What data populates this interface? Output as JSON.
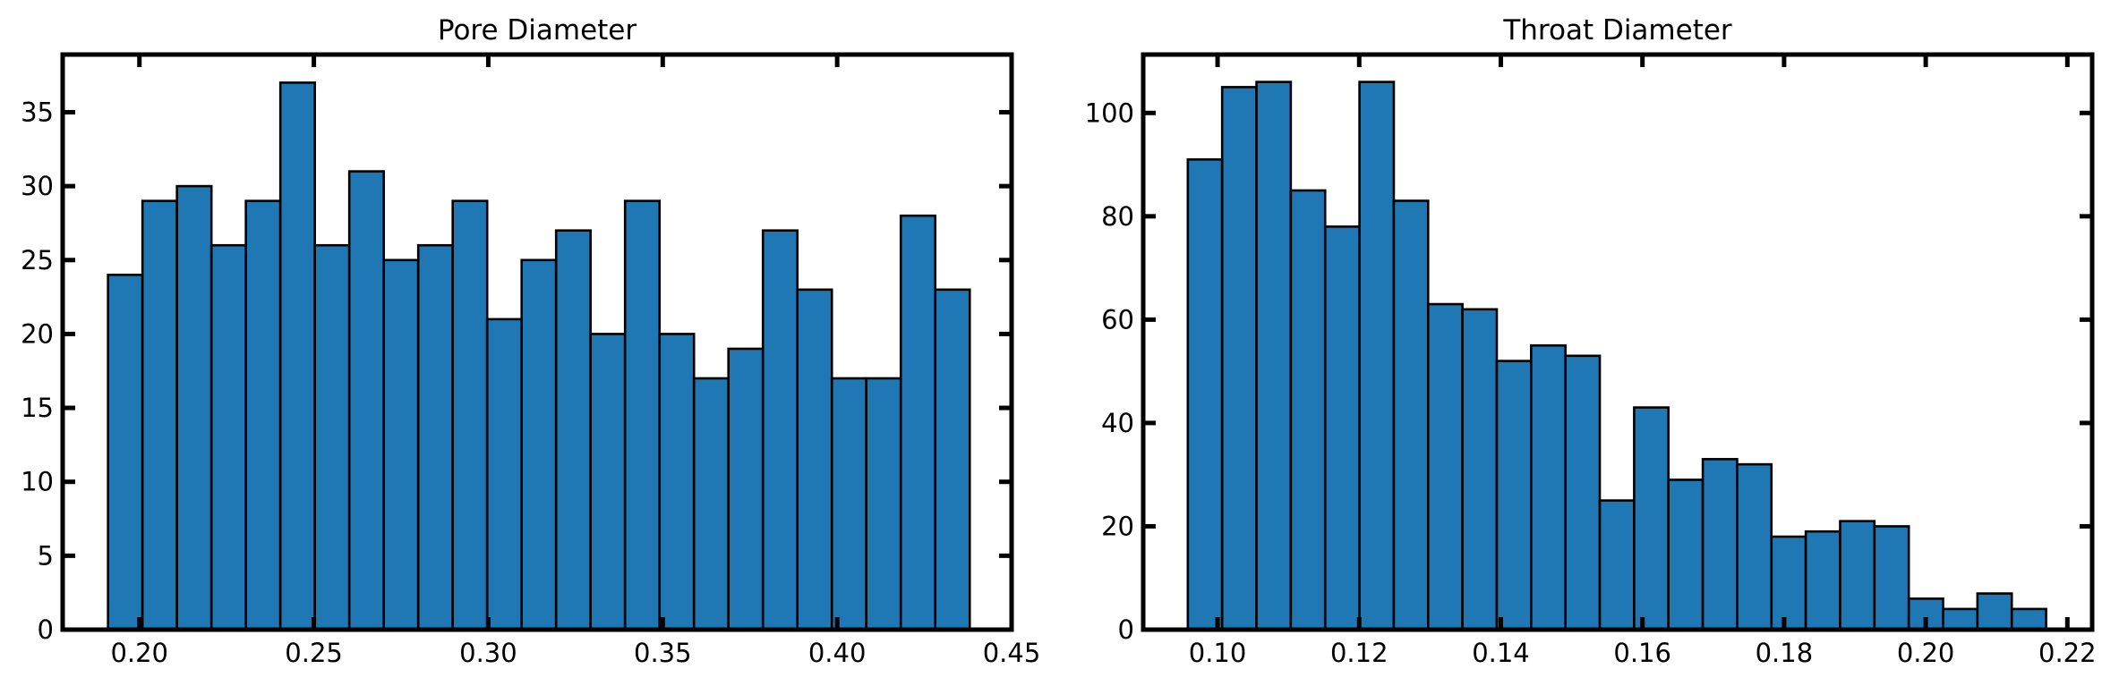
{
  "chart_data": [
    {
      "type": "bar",
      "title": "Pore Diameter",
      "xlabel": "",
      "ylabel": "",
      "xlim": [
        0.178,
        0.45
      ],
      "ylim": [
        0,
        38.9
      ],
      "grid": false,
      "color": "#1f77b4",
      "bin_start": 0.191,
      "bin_width": 0.00988,
      "values": [
        24,
        29,
        30,
        26,
        29,
        37,
        26,
        31,
        25,
        26,
        29,
        21,
        25,
        27,
        20,
        29,
        20,
        17,
        19,
        27,
        23,
        17,
        17,
        28,
        23
      ],
      "xticks": [
        0.2,
        0.25,
        0.3,
        0.35,
        0.4,
        0.45
      ],
      "xtick_labels": [
        "0.20",
        "0.25",
        "0.30",
        "0.35",
        "0.40",
        "0.45"
      ],
      "yticks": [
        0,
        5,
        10,
        15,
        20,
        25,
        30,
        35
      ],
      "ytick_labels": [
        "0",
        "5",
        "10",
        "15",
        "20",
        "25",
        "30",
        "35"
      ]
    },
    {
      "type": "bar",
      "title": "Throat Diameter",
      "xlabel": "",
      "ylabel": "",
      "xlim": [
        0.0895,
        0.2235
      ],
      "ylim": [
        0,
        111.3
      ],
      "grid": false,
      "color": "#1f77b4",
      "bin_start": 0.0958,
      "bin_width": 0.004848,
      "values": [
        91,
        105,
        106,
        85,
        78,
        106,
        83,
        63,
        62,
        52,
        55,
        53,
        25,
        43,
        29,
        33,
        32,
        18,
        19,
        21,
        20,
        6,
        4,
        7,
        4
      ],
      "xticks": [
        0.1,
        0.12,
        0.14,
        0.16,
        0.18,
        0.2,
        0.22
      ],
      "xtick_labels": [
        "0.10",
        "0.12",
        "0.14",
        "0.16",
        "0.18",
        "0.20",
        "0.22"
      ],
      "yticks": [
        0,
        20,
        40,
        60,
        80,
        100
      ],
      "ytick_labels": [
        "0",
        "20",
        "40",
        "60",
        "80",
        "100"
      ]
    }
  ]
}
